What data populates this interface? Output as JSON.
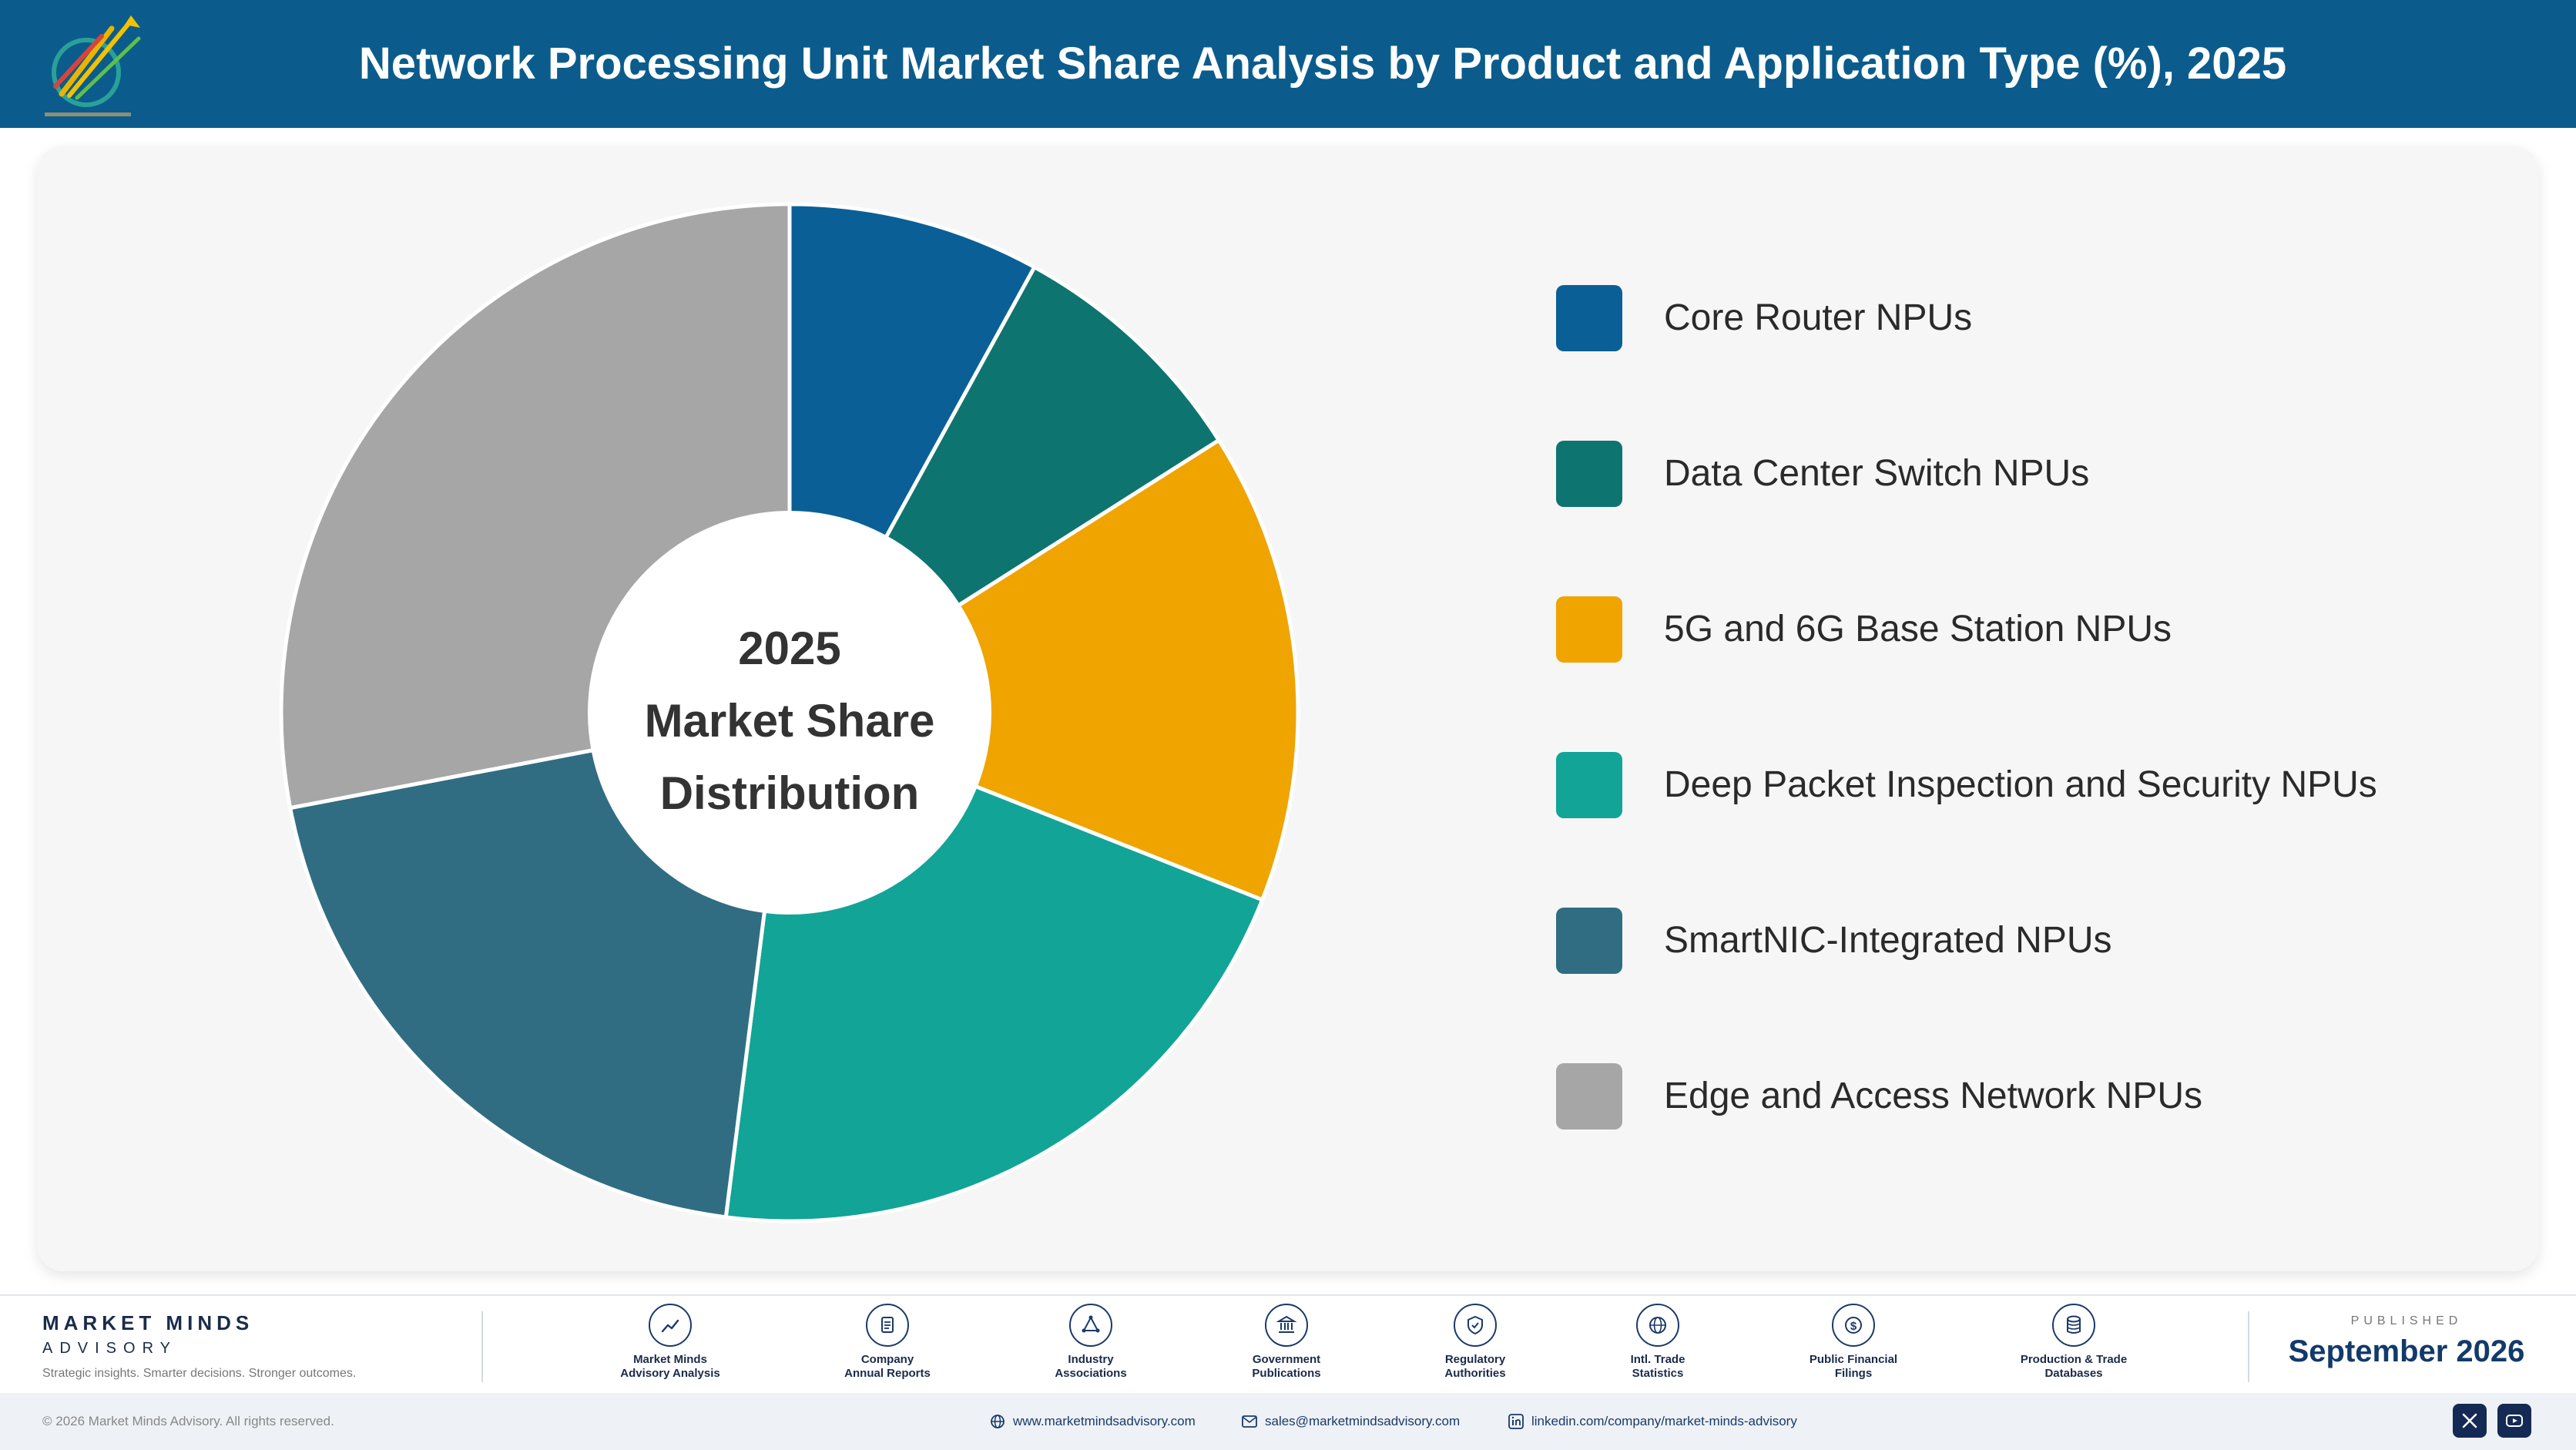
{
  "header": {
    "title": "Network Processing Unit Market Share Analysis by Product and Application Type (%), 2025"
  },
  "chart_data": {
    "type": "pie",
    "style": "donut",
    "center_label": [
      "2025",
      "Market Share",
      "Distribution"
    ],
    "categories": [
      "Core Router NPUs",
      "Data Center Switch NPUs",
      "5G and 6G Base Station NPUs",
      "Deep Packet Inspection and Security NPUs",
      "SmartNIC-Integrated NPUs",
      "Edge and Access Network NPUs"
    ],
    "values": [
      8,
      8,
      15,
      21,
      20,
      28
    ],
    "colors": [
      "#0a6096",
      "#0e7470",
      "#f0a400",
      "#12a497",
      "#306d82",
      "#a6a6a6"
    ],
    "legend_position": "right"
  },
  "footer": {
    "brand_name": "MARKET MINDS",
    "brand_sub": "ADVISORY",
    "tagline": "Strategic insights. Smarter decisions. Stronger outcomes.",
    "sources": [
      {
        "label": "Market Minds\nAdvisory Analysis",
        "icon": "trend-icon"
      },
      {
        "label": "Company\nAnnual Reports",
        "icon": "document-icon"
      },
      {
        "label": "Industry\nAssociations",
        "icon": "network-icon"
      },
      {
        "label": "Government\nPublications",
        "icon": "government-icon"
      },
      {
        "label": "Regulatory\nAuthorities",
        "icon": "shield-icon"
      },
      {
        "label": "Intl. Trade\nStatistics",
        "icon": "globe-icon"
      },
      {
        "label": "Public Financial\nFilings",
        "icon": "dollar-icon"
      },
      {
        "label": "Production & Trade\nDatabases",
        "icon": "database-icon"
      }
    ],
    "published_kicker": "PUBLISHED",
    "published_date": "September 2026",
    "copyright": "© 2026 Market Minds Advisory. All rights reserved.",
    "website": "www.marketmindsadvisory.com",
    "email": "sales@marketmindsadvisory.com",
    "linkedin": "linkedin.com/company/market-minds-advisory"
  }
}
